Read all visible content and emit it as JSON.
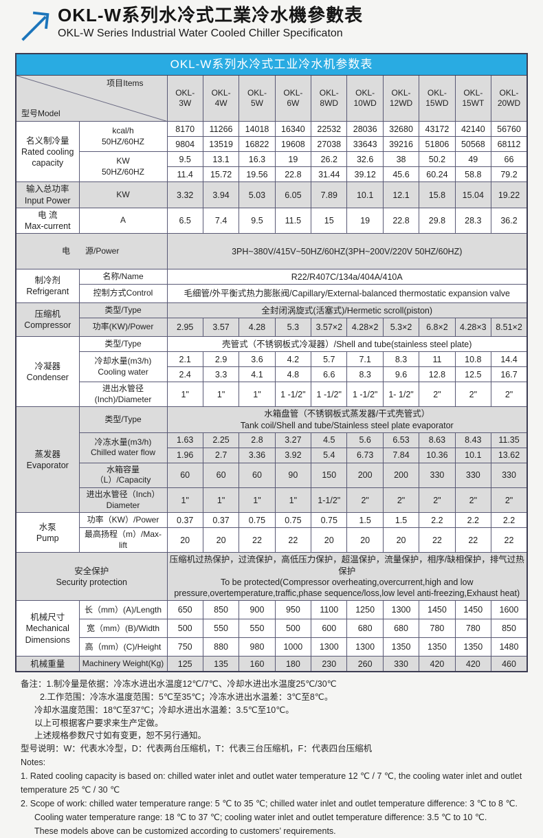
{
  "page": {
    "title_zh": "OKL-W系列水冷式工業冷水機參數表",
    "title_en": "OKL-W Series Industrial Water Cooled Chiller Specificaton"
  },
  "colors": {
    "accent_blue": "#29abe2",
    "row_gray": "#dcdcdc",
    "arrow_blue": "#1c75bb"
  },
  "table": {
    "title": "OKL-W系列水冷式工业冷水机参数表",
    "corner": {
      "model": "型号Model",
      "items": "项目Items"
    },
    "models": [
      "OKL-\n3W",
      "OKL-\n4W",
      "OKL-\n5W",
      "OKL-\n6W",
      "OKL-\n8WD",
      "OKL-\n10WD",
      "OKL-\n12WD",
      "OKL-\n15WD",
      "OKL-\n15WT",
      "OKL-\n20WD"
    ],
    "labels": {
      "group_cooling": "名义制冷量\nRated cooling\ncapacity",
      "item_kcal": "kcal/h\n50HZ/60HZ",
      "item_kw": "KW\n50HZ/60HZ",
      "group_input": "输入总功率\nInput Power",
      "item_input": "KW",
      "group_current": "电 流\nMax-current",
      "item_current": "A",
      "power_zh": "电",
      "power_en": "源/Power",
      "group_refrigerant": "制冷剂\nRefrigerant",
      "item_name": "名称/Name",
      "item_control": "控制方式Control",
      "group_compressor": "压缩机\nCompressor",
      "item_type": "类型/Type",
      "item_comp_power": "功率(KW)/Power",
      "group_condenser": "冷凝器\nCondenser",
      "item_cooling": "冷却水量(m3/h)\nCooling water",
      "item_cond_dia": "进出水管径\n(Inch)/Diameter",
      "group_evaporator": "蒸发器\nEvaporator",
      "item_chilled": "冷冻水量(m3/h)\nChilled water flow",
      "item_capacity": "水箱容量（L）/Capacity",
      "item_evap_dia": "进出水管径（Inch）\nDiameter",
      "group_pump": "水泵\nPump",
      "item_pump_power": "功率（KW）/Power",
      "item_lift": "最高扬程（m）/Max-lift",
      "security": "安全保护\nSecurity protection",
      "group_dims": "机械尺寸\nMechanical\nDimensions",
      "item_length": "长（mm）(A)/Length",
      "item_width": "宽（mm）(B)/Width",
      "item_height": "高（mm）(C)/Height",
      "weight_group": "机械重量",
      "item_weight": "Machinery Weight(Kg)"
    },
    "rows": {
      "kcal_50": [
        "8170",
        "11266",
        "14018",
        "16340",
        "22532",
        "28036",
        "32680",
        "43172",
        "42140",
        "56760"
      ],
      "kcal_60": [
        "9804",
        "13519",
        "16822",
        "19608",
        "27038",
        "33643",
        "39216",
        "51806",
        "50568",
        "68112"
      ],
      "kw_50": [
        "9.5",
        "13.1",
        "16.3",
        "19",
        "26.2",
        "32.6",
        "38",
        "50.2",
        "49",
        "66"
      ],
      "kw_60": [
        "11.4",
        "15.72",
        "19.56",
        "22.8",
        "31.44",
        "39.12",
        "45.6",
        "60.24",
        "58.8",
        "79.2"
      ],
      "input_kw": [
        "3.32",
        "3.94",
        "5.03",
        "6.05",
        "7.89",
        "10.1",
        "12.1",
        "15.8",
        "15.04",
        "19.22"
      ],
      "current_a": [
        "6.5",
        "7.4",
        "9.5",
        "11.5",
        "15",
        "19",
        "22.8",
        "29.8",
        "28.3",
        "36.2"
      ],
      "power_supply": "3PH~380V/415V~50HZ/60HZ(3PH~200V/220V  50HZ/60HZ)",
      "refrigerant_name": "R22/R407C/134a/404A/410A",
      "control": "毛细管/外平衡式热力膨胀阀/Capillary/External-balanced thermostatic expansion valve",
      "comp_type": "全封闭涡旋式(活塞式)/Hermetic scroll(piston)",
      "comp_power": [
        "2.95",
        "3.57",
        "4.28",
        "5.3",
        "3.57×2",
        "4.28×2",
        "5.3×2",
        "6.8×2",
        "4.28×3",
        "8.51×2"
      ],
      "cond_type": "壳管式（不锈钢板式冷凝器）/Shell and tube(stainless steel plate)",
      "cooling_1": [
        "2.1",
        "2.9",
        "3.6",
        "4.2",
        "5.7",
        "7.1",
        "8.3",
        "11",
        "10.8",
        "14.4"
      ],
      "cooling_2": [
        "2.4",
        "3.3",
        "4.1",
        "4.8",
        "6.6",
        "8.3",
        "9.6",
        "12.8",
        "12.5",
        "16.7"
      ],
      "cond_dia": [
        "1\"",
        "1\"",
        "1\"",
        "1 -1/2\"",
        "1 -1/2\"",
        "1 -1/2\"",
        "1- 1/2\"",
        "2\"",
        "2\"",
        "2\""
      ],
      "evap_type": "水箱盘管（不锈钢板式蒸发器/干式壳管式）\nTank coil/Shell and tube/Stainless steel plate evaporator",
      "chilled_1": [
        "1.63",
        "2.25",
        "2.8",
        "3.27",
        "4.5",
        "5.6",
        "6.53",
        "8.63",
        "8.43",
        "11.35"
      ],
      "chilled_2": [
        "1.96",
        "2.7",
        "3.36",
        "3.92",
        "5.4",
        "6.73",
        "7.84",
        "10.36",
        "10.1",
        "13.62"
      ],
      "capacity": [
        "60",
        "60",
        "60",
        "90",
        "150",
        "200",
        "200",
        "330",
        "330",
        "330"
      ],
      "evap_dia": [
        "1\"",
        "1\"",
        "1\"",
        "1\"",
        "1-1/2\"",
        "2\"",
        "2\"",
        "2\"",
        "2\"",
        "2\""
      ],
      "pump_power": [
        "0.37",
        "0.37",
        "0.75",
        "0.75",
        "0.75",
        "1.5",
        "1.5",
        "2.2",
        "2.2",
        "2.2"
      ],
      "max_lift": [
        "20",
        "20",
        "22",
        "22",
        "20",
        "20",
        "20",
        "22",
        "22",
        "22"
      ],
      "security": "压缩机过热保护，过流保护，高低压力保护，超温保护，流量保护，相序/缺相保护，排气过热保护\nTo be protected(Compressor overheating,overcurrent,high and low\npressure,overtemperature,traffic,phase sequence/loss,low level anti-freezing,Exhaust heat)",
      "length": [
        "650",
        "850",
        "900",
        "950",
        "1100",
        "1250",
        "1300",
        "1450",
        "1450",
        "1600"
      ],
      "width": [
        "500",
        "550",
        "550",
        "500",
        "600",
        "680",
        "680",
        "780",
        "780",
        "850"
      ],
      "height": [
        "750",
        "880",
        "980",
        "1000",
        "1300",
        "1300",
        "1350",
        "1350",
        "1350",
        "1480"
      ],
      "weight": [
        "125",
        "135",
        "160",
        "180",
        "230",
        "260",
        "330",
        "420",
        "420",
        "460"
      ]
    }
  },
  "notes_zh": [
    "备注：1.制冷量是依据：冷冻水进出水温度12℃/7℃、冷却水进出水温度25℃/30℃",
    "2.工作范围：冷冻水温度范围：5℃至35℃；冷冻水进出水温差：3℃至8℃。",
    "冷却水温度范围：18℃至37℃；冷却水进出水温差：3.5℃至10℃。",
    "以上可根据客户要求来生产定做。",
    "上述规格参数尺寸如有变更，恕不另行通知。",
    "型号说明：W：代表水冷型，D：代表两台压缩机，T：代表三台压缩机，F：代表四台压缩机"
  ],
  "notes_en": [
    "Notes:",
    "1. Rated cooling capacity is based on: chilled water inlet and outlet water temperature 12 ℃ / 7 ℃, the cooling water inlet and outlet",
    "temperature 25 ℃ / 30 ℃",
    "2. Scope of work: chilled water temperature range: 5 ℃ to 35 ℃; chilled water inlet and outlet temperature difference: 3 ℃ to 8 ℃.",
    "Cooling water temperature range: 18 ℃ to 37 ℃; cooling water inlet and outlet temperature difference: 3.5 ℃ to 10 ℃.",
    "These models above can be customized according to customers’  requirements."
  ]
}
